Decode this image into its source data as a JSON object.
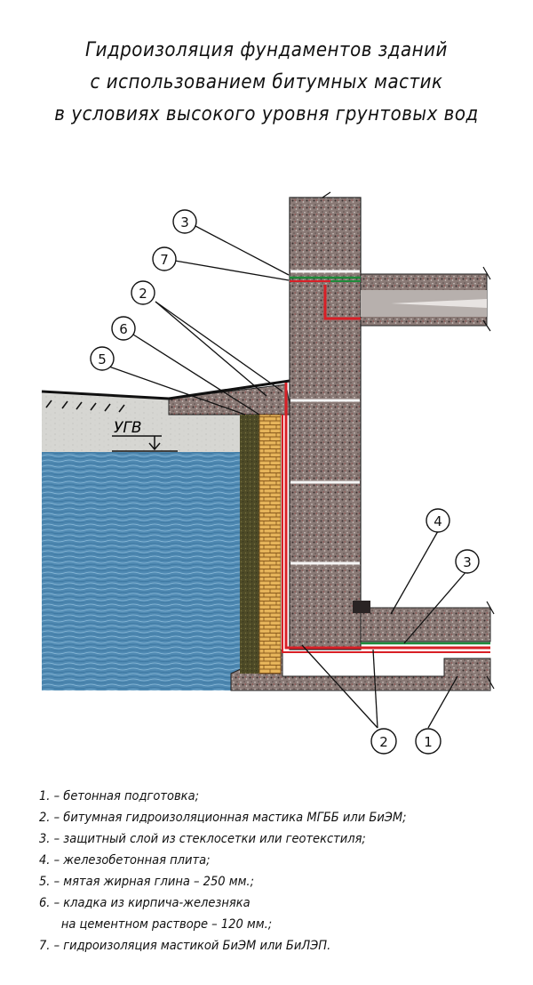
{
  "title": {
    "line1": "Гидроизоляция фундаментов зданий",
    "line2": "с использованием битумных мастик",
    "line3": "в условиях высокого уровня грунтовых вод"
  },
  "water_level_label": "УГВ",
  "callouts": [
    "3",
    "7",
    "2",
    "6",
    "5",
    "4",
    "3",
    "2",
    "1"
  ],
  "legend": [
    {
      "text": "1. – бетонная подготовка;"
    },
    {
      "text": "2. – битумная гидроизоляционная мастика МГББ или БиЭМ;"
    },
    {
      "text": "3. – защитный слой из стеклосетки или геотекстиля;"
    },
    {
      "text": "4. – железобетонная плита;"
    },
    {
      "text": "5. – мятая жирная глина – 250 мм.;"
    },
    {
      "text": "6. – кладка из кирпича-железняка"
    },
    {
      "text": "на цементном растворе – 120 мм.;"
    },
    {
      "text": "7. – гидроизоляция мастикой БиЭМ или БиЛЭП."
    }
  ],
  "colors": {
    "concrete": "#8c7b76",
    "water": "#4f8bb5",
    "soil": "#d8d8d4",
    "brick": "#e8b75a",
    "clay": "#4f4a26",
    "mastic_red": "#d81f26",
    "membrane_green": "#1e8a3a",
    "slab_gray": "#7f7775"
  }
}
